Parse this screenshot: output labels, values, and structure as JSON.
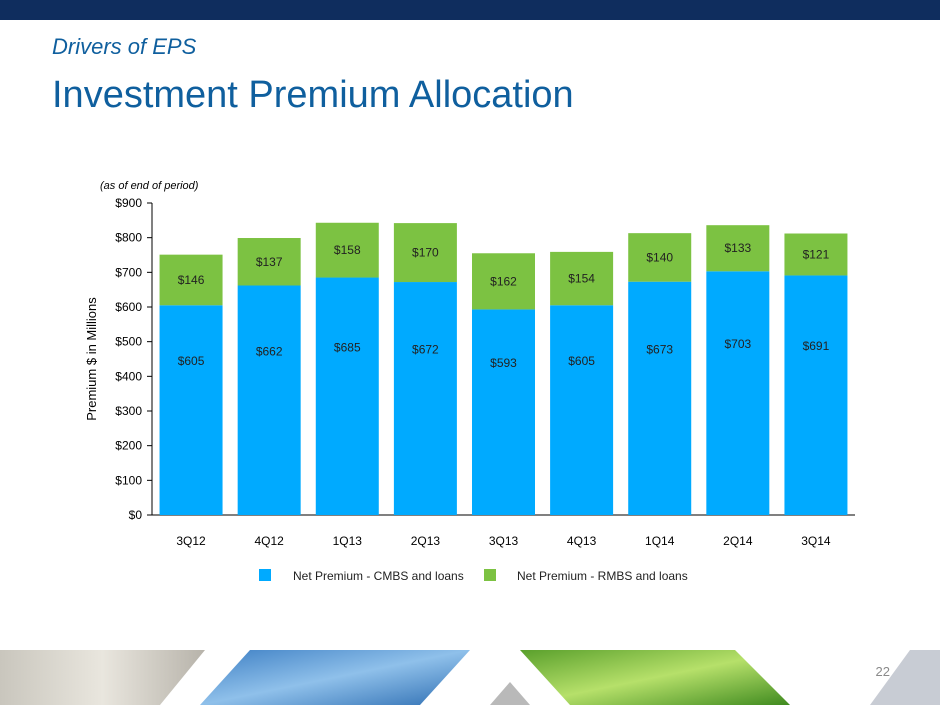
{
  "header": {
    "subtitle": "Drivers of EPS",
    "title": "Investment Premium Allocation"
  },
  "page_number": "22",
  "colors": {
    "top_bar": "#0f2d5e",
    "title": "#0f5f9e",
    "cmbs": "#00aaff",
    "rmbs": "#7cc242"
  },
  "chart_data": {
    "type": "bar",
    "stacked": true,
    "note": "(as of end of period)",
    "ylabel": "Premium $ in Millions",
    "ylim": [
      0,
      900
    ],
    "yticks": [
      "$0",
      "$100",
      "$200",
      "$300",
      "$400",
      "$500",
      "$600",
      "$700",
      "$800",
      "$900"
    ],
    "categories": [
      "3Q12",
      "4Q12",
      "1Q13",
      "2Q13",
      "3Q13",
      "4Q13",
      "1Q14",
      "2Q14",
      "3Q14"
    ],
    "series": [
      {
        "name": "Net Premium - CMBS and loans",
        "color": "#00aaff",
        "values": [
          605,
          662,
          685,
          672,
          593,
          605,
          673,
          703,
          691
        ],
        "labels": [
          "$605",
          "$662",
          "$685",
          "$672",
          "$593",
          "$605",
          "$673",
          "$703",
          "$691"
        ]
      },
      {
        "name": "Net Premium - RMBS and loans",
        "color": "#7cc242",
        "values": [
          146,
          137,
          158,
          170,
          162,
          154,
          140,
          133,
          121
        ],
        "labels": [
          "$146",
          "$137",
          "$158",
          "$170",
          "$162",
          "$154",
          "$140",
          "$133",
          "$121"
        ]
      }
    ],
    "legend_position": "bottom",
    "grid": false
  }
}
